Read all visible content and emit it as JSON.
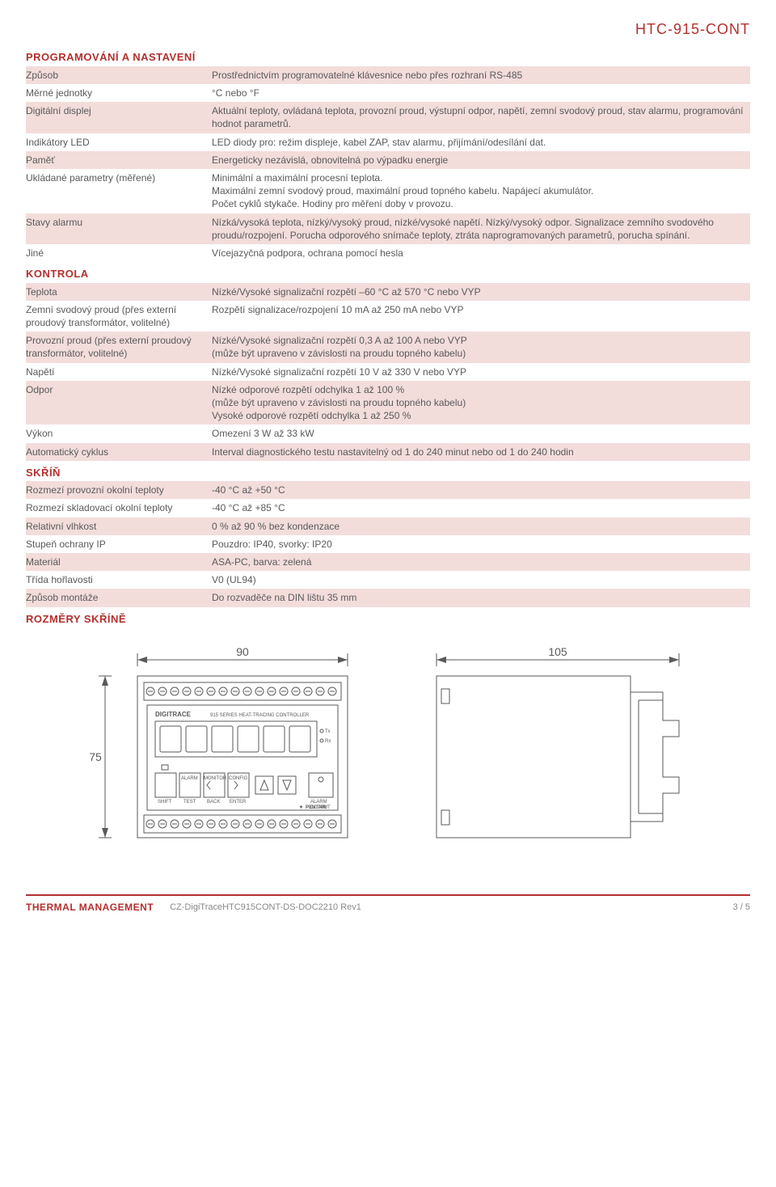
{
  "productCode": "HTC-915-CONT",
  "sections": {
    "programming": {
      "title": "PROGRAMOVÁNÍ A NASTAVENÍ",
      "rows": [
        {
          "label": "Způsob",
          "value": "Prostřednictvím programovatelné klávesnice nebo přes rozhraní RS-485",
          "stripe": true
        },
        {
          "label": "Měrné jednotky",
          "value": "°C nebo °F",
          "stripe": false
        },
        {
          "label": "Digitální displej",
          "value": "Aktuální teploty, ovládaná teplota, provozní proud, výstupní odpor, napětí, zemní svodový proud, stav alarmu, programování hodnot parametrů.",
          "stripe": true
        },
        {
          "label": "Indikátory LED",
          "value": "LED diody pro: režim displeje, kabel ZAP, stav alarmu, přijímání/odesílání dat.",
          "stripe": false
        },
        {
          "label": "Paměť",
          "value": "Energeticky nezávislá, obnovitelná po výpadku energie",
          "stripe": true
        },
        {
          "label": "Ukládané parametry (měřené)",
          "value": "Minimální a maximální procesní teplota.\nMaximální zemní svodový proud, maximální proud topného kabelu. Napájecí akumulátor.\nPočet cyklů stykače. Hodiny pro měření doby v provozu.",
          "stripe": false
        },
        {
          "label": "Stavy alarmu",
          "value": "Nízká/vysoká teplota, nízký/vysoký proud, nízké/vysoké napětí. Nízký/vysoký odpor. Signalizace zemního svodového proudu/rozpojení. Porucha odporového snímače teploty, ztráta naprogramovaných parametrů, porucha spínání.",
          "stripe": true
        },
        {
          "label": "Jiné",
          "value": "Vícejazyčná podpora, ochrana pomocí hesla",
          "stripe": false
        }
      ]
    },
    "control": {
      "title": "KONTROLA",
      "rows": [
        {
          "label": "Teplota",
          "value": "Nízké/Vysoké signalizační rozpětí –60 °C až 570 °C nebo VYP",
          "stripe": true
        },
        {
          "label": "Zemní svodový proud (přes externí proudový transformátor, volitelné)",
          "value": "Rozpětí signalizace/rozpojení 10 mA až 250 mA nebo VYP",
          "stripe": false
        },
        {
          "label": "Provozní proud (přes externí proudový transformátor, volitelné)",
          "value": "Nízké/Vysoké signalizační rozpětí 0,3 A až 100 A nebo VYP\n(může být upraveno v závislosti na proudu topného kabelu)",
          "stripe": true
        },
        {
          "label": "Napětí",
          "value": "Nízké/Vysoké signalizační rozpětí 10 V až 330 V nebo VYP",
          "stripe": false
        },
        {
          "label": "Odpor",
          "value": "Nízké odporové rozpětí odchylka 1 až 100 %\n(může být upraveno v závislosti na proudu topného kabelu)\nVysoké odporové rozpětí odchylka 1 až 250 %",
          "stripe": true
        },
        {
          "label": "Výkon",
          "value": "Omezení 3 W až 33 kW",
          "stripe": false
        },
        {
          "label": "Automatický cyklus",
          "value": "Interval diagnostického testu nastavitelný od 1 do 240 minut nebo od 1 do 240 hodin",
          "stripe": true
        }
      ]
    },
    "enclosure": {
      "title": "SKŘÍŇ",
      "rows": [
        {
          "label": "Rozmezí provozní okolní teploty",
          "value": "-40 °C až +50 °C",
          "stripe": true
        },
        {
          "label": "Rozmezí skladovací okolní teploty",
          "value": "-40 °C až +85 °C",
          "stripe": false
        },
        {
          "label": "Relativní vlhkost",
          "value": "0 % až 90 % bez kondenzace",
          "stripe": true
        },
        {
          "label": "Stupeň ochrany IP",
          "value": "Pouzdro: IP40, svorky: IP20",
          "stripe": false
        },
        {
          "label": "Materiál",
          "value": "ASA-PC, barva: zelená",
          "stripe": true
        },
        {
          "label": "Třída hořlavosti",
          "value": "V0 (UL94)",
          "stripe": false
        },
        {
          "label": "Způsob montáže",
          "value": "Do rozvaděče na DIN lištu 35 mm",
          "stripe": true
        }
      ]
    },
    "dimensions": {
      "title": "ROZMĚRY SKŘÍNĚ",
      "width": "90",
      "height": "75",
      "depth": "105",
      "deviceBrand": "DIGITRACE",
      "deviceSeries": "915 SERIES HEAT-TRACING CONTROLLER",
      "txLabel": "Tx",
      "rxLabel": "Rx",
      "buttons": {
        "shift": "SHIFT",
        "alarm": "ALARM",
        "test": "TEST",
        "monitor": "MONITOR",
        "back": "BACK",
        "config": "CONFIG",
        "enter": "ENTER",
        "alarmOutput": "ALARM\nOUTPUT"
      },
      "pentair": "PENTAIR"
    }
  },
  "footer": {
    "brand": "THERMAL MANAGEMENT",
    "docRef": "CZ-DigiTraceHTC915CONT-DS-DOC2210 Rev1",
    "page": "3 / 5"
  },
  "colors": {
    "red": "#b2302e",
    "stripe": "#f2dddb",
    "text": "#5a5a5a"
  }
}
